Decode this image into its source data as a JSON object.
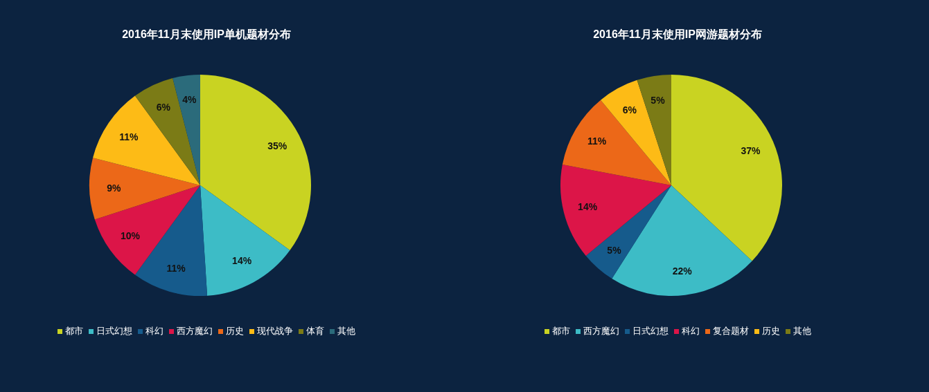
{
  "chart_data": [
    {
      "type": "pie",
      "title": "2016年11月末使用IP单机题材分布",
      "categories": [
        "都市",
        "日式幻想",
        "科幻",
        "西方魔幻",
        "历史",
        "现代战争",
        "体育",
        "其他"
      ],
      "values": [
        35,
        14,
        11,
        10,
        9,
        11,
        6,
        4
      ],
      "value_labels": [
        "35%",
        "14%",
        "11%",
        "10%",
        "9%",
        "11%",
        "6%",
        "4%"
      ],
      "colors": [
        "#c9d322",
        "#3dbcc6",
        "#165b8c",
        "#dc1548",
        "#ec6818",
        "#fdbb16",
        "#7b7b16",
        "#2b6b7b"
      ],
      "legend": "bottom"
    },
    {
      "type": "pie",
      "title": "2016年11月末使用IP网游题材分布",
      "categories": [
        "都市",
        "西方魔幻",
        "日式幻想",
        "科幻",
        "复合题材",
        "历史",
        "其他"
      ],
      "values": [
        37,
        22,
        5,
        14,
        11,
        6,
        5
      ],
      "value_labels": [
        "37%",
        "22%",
        "5%",
        "14%",
        "11%",
        "6%",
        "5%"
      ],
      "colors": [
        "#c9d322",
        "#3dbcc6",
        "#165b8c",
        "#dc1548",
        "#ec6818",
        "#fdbb16",
        "#7b7b16"
      ],
      "legend": "bottom"
    }
  ]
}
